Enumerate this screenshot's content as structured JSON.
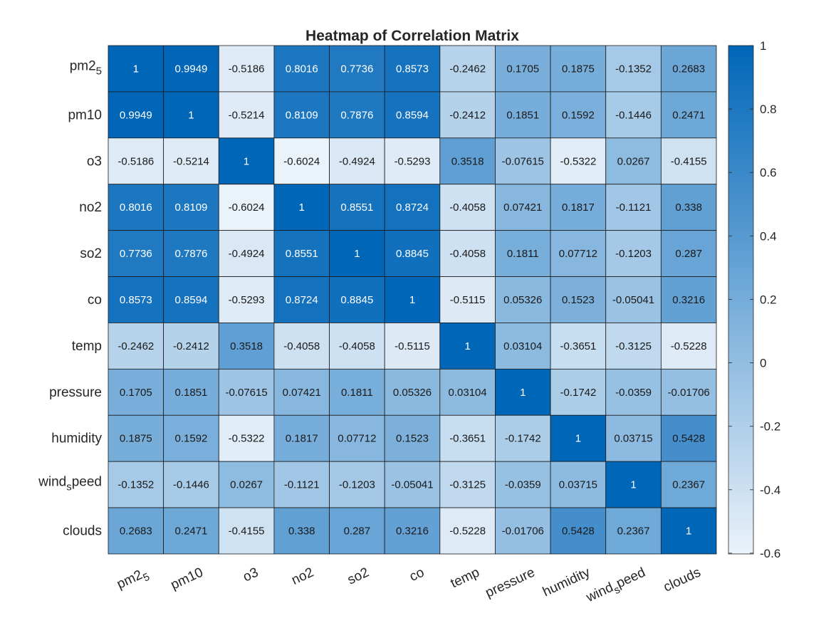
{
  "chart_data": {
    "type": "heatmap",
    "title": "Heatmap of Correlation Matrix",
    "xlabel": "",
    "ylabel": "",
    "row_labels": [
      {
        "base": "pm2",
        "sub": "5",
        "after": ""
      },
      {
        "base": "pm10",
        "sub": "",
        "after": ""
      },
      {
        "base": "o3",
        "sub": "",
        "after": ""
      },
      {
        "base": "no2",
        "sub": "",
        "after": ""
      },
      {
        "base": "so2",
        "sub": "",
        "after": ""
      },
      {
        "base": "co",
        "sub": "",
        "after": ""
      },
      {
        "base": "temp",
        "sub": "",
        "after": ""
      },
      {
        "base": "pressure",
        "sub": "",
        "after": ""
      },
      {
        "base": "humidity",
        "sub": "",
        "after": ""
      },
      {
        "base": "wind",
        "sub": "s",
        "after": "peed"
      },
      {
        "base": "clouds",
        "sub": "",
        "after": ""
      }
    ],
    "col_labels": [
      {
        "base": "pm2",
        "sub": "5",
        "after": ""
      },
      {
        "base": "pm10",
        "sub": "",
        "after": ""
      },
      {
        "base": "o3",
        "sub": "",
        "after": ""
      },
      {
        "base": "no2",
        "sub": "",
        "after": ""
      },
      {
        "base": "so2",
        "sub": "",
        "after": ""
      },
      {
        "base": "co",
        "sub": "",
        "after": ""
      },
      {
        "base": "temp",
        "sub": "",
        "after": ""
      },
      {
        "base": "pressure",
        "sub": "",
        "after": ""
      },
      {
        "base": "humidity",
        "sub": "",
        "after": ""
      },
      {
        "base": "wind",
        "sub": "s",
        "after": "peed"
      },
      {
        "base": "clouds",
        "sub": "",
        "after": ""
      }
    ],
    "values": [
      [
        "1",
        "0.9949",
        "-0.5186",
        "0.8016",
        "0.7736",
        "0.8573",
        "-0.2462",
        "0.1705",
        "0.1875",
        "-0.1352",
        "0.2683"
      ],
      [
        "0.9949",
        "1",
        "-0.5214",
        "0.8109",
        "0.7876",
        "0.8594",
        "-0.2412",
        "0.1851",
        "0.1592",
        "-0.1446",
        "0.2471"
      ],
      [
        "-0.5186",
        "-0.5214",
        "1",
        "-0.6024",
        "-0.4924",
        "-0.5293",
        "0.3518",
        "-0.07615",
        "-0.5322",
        "0.0267",
        "-0.4155"
      ],
      [
        "0.8016",
        "0.8109",
        "-0.6024",
        "1",
        "0.8551",
        "0.8724",
        "-0.4058",
        "0.07421",
        "0.1817",
        "-0.1121",
        "0.338"
      ],
      [
        "0.7736",
        "0.7876",
        "-0.4924",
        "0.8551",
        "1",
        "0.8845",
        "-0.4058",
        "0.1811",
        "0.07712",
        "-0.1203",
        "0.287"
      ],
      [
        "0.8573",
        "0.8594",
        "-0.5293",
        "0.8724",
        "0.8845",
        "1",
        "-0.5115",
        "0.05326",
        "0.1523",
        "-0.05041",
        "0.3216"
      ],
      [
        "-0.2462",
        "-0.2412",
        "0.3518",
        "-0.4058",
        "-0.4058",
        "-0.5115",
        "1",
        "0.03104",
        "-0.3651",
        "-0.3125",
        "-0.5228"
      ],
      [
        "0.1705",
        "0.1851",
        "-0.07615",
        "0.07421",
        "0.1811",
        "0.05326",
        "0.03104",
        "1",
        "-0.1742",
        "-0.0359",
        "-0.01706"
      ],
      [
        "0.1875",
        "0.1592",
        "-0.5322",
        "0.1817",
        "0.07712",
        "0.1523",
        "-0.3651",
        "-0.1742",
        "1",
        "0.03715",
        "0.5428"
      ],
      [
        "-0.1352",
        "-0.1446",
        "0.0267",
        "-0.1121",
        "-0.1203",
        "-0.05041",
        "-0.3125",
        "-0.0359",
        "0.03715",
        "1",
        "0.2367"
      ],
      [
        "0.2683",
        "0.2471",
        "-0.4155",
        "0.338",
        "0.287",
        "0.3216",
        "-0.5228",
        "-0.01706",
        "0.5428",
        "0.2367",
        "1"
      ]
    ],
    "colorbar": {
      "min": -0.6024,
      "max": 1,
      "ticks": [
        "1",
        "0.8",
        "0.6",
        "0.4",
        "0.2",
        "0",
        "-0.2",
        "-0.4",
        "-0.6"
      ],
      "color_low": "#eaf2fa",
      "color_high": "#0066b8"
    },
    "grid": true,
    "legend": "colorbar-right"
  }
}
